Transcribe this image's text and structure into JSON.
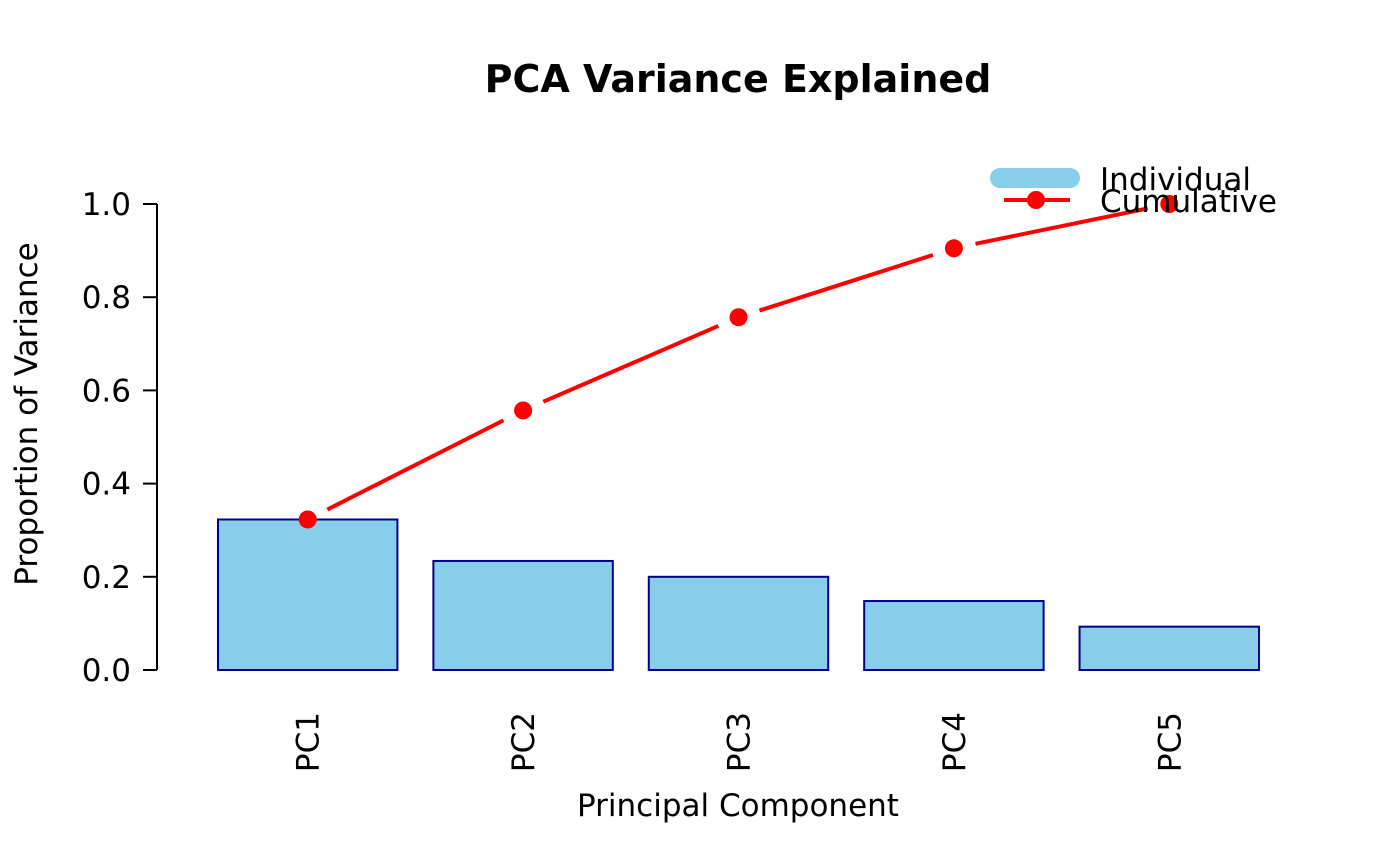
{
  "chart_data": {
    "type": "bar",
    "title": "PCA Variance Explained",
    "xlabel": "Principal Component",
    "ylabel": "Proportion of Variance",
    "categories": [
      "PC1",
      "PC2",
      "PC3",
      "PC4",
      "PC5"
    ],
    "ylim": [
      0,
      1.0
    ],
    "yticks": [
      "0.0",
      "0.2",
      "0.4",
      "0.6",
      "0.8",
      "1.0"
    ],
    "grid": false,
    "legend_position": "top-right",
    "series": [
      {
        "name": "Individual",
        "type": "bar",
        "values": [
          0.323,
          0.234,
          0.2,
          0.148,
          0.093
        ],
        "color": "#87CEEB",
        "border_color": "#00008B"
      },
      {
        "name": "Cumulative",
        "type": "line",
        "values": [
          0.323,
          0.557,
          0.757,
          0.905,
          1.0
        ],
        "color": "#FF0000"
      }
    ]
  }
}
